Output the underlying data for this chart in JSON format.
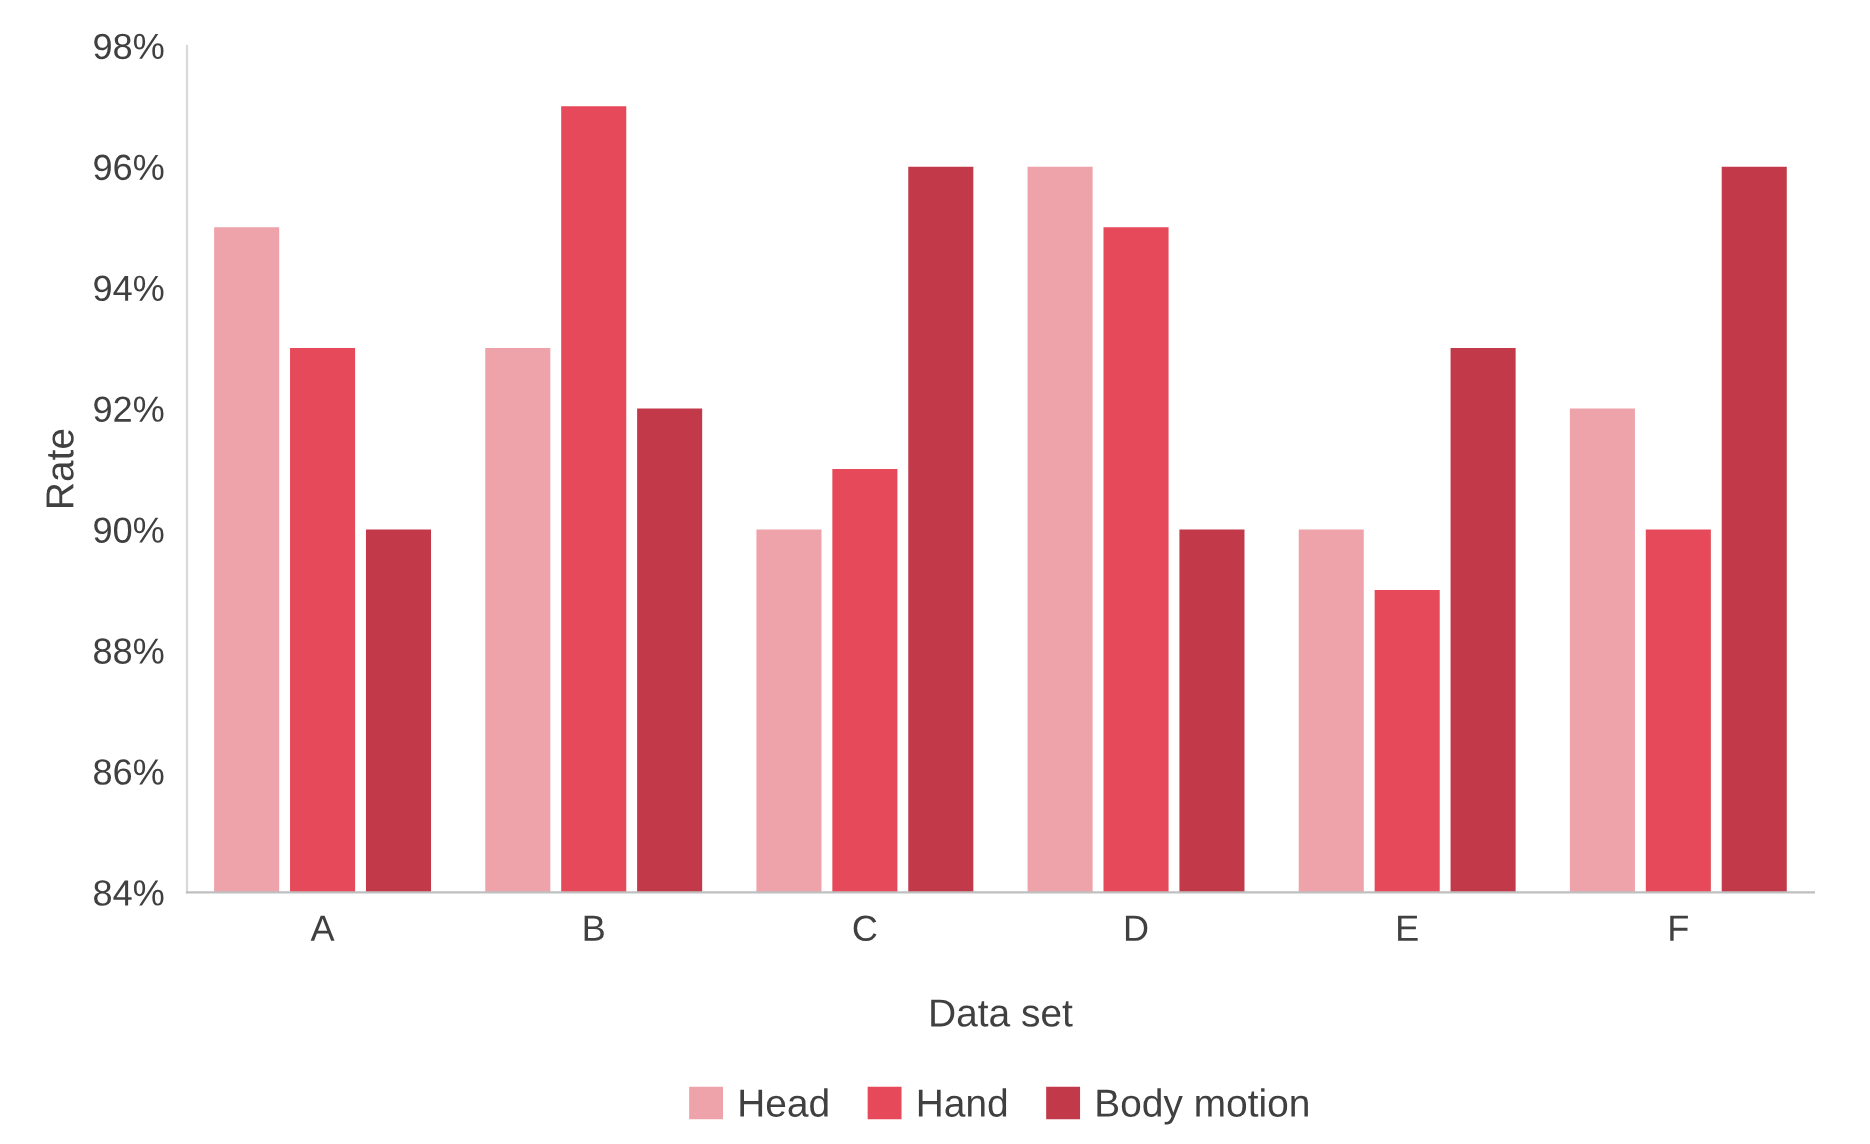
{
  "chart_data": {
    "type": "bar",
    "xlabel": "Data set",
    "ylabel": "Rate",
    "categories": [
      "A",
      "B",
      "C",
      "D",
      "E",
      "F"
    ],
    "series": [
      {
        "name": "Head",
        "color": "#eea3ab",
        "values": [
          95,
          93,
          90,
          96,
          90,
          92
        ]
      },
      {
        "name": "Hand",
        "color": "#e64a5a",
        "values": [
          93,
          97,
          91,
          95,
          89,
          90
        ]
      },
      {
        "name": "Body motion",
        "color": "#c23a4a",
        "values": [
          90,
          92,
          96,
          90,
          93,
          96
        ]
      }
    ],
    "ylim": [
      84,
      98
    ],
    "yticks": [
      {
        "value": 84,
        "label": "84%"
      },
      {
        "value": 86,
        "label": "86%"
      },
      {
        "value": 88,
        "label": "88%"
      },
      {
        "value": 90,
        "label": "90%"
      },
      {
        "value": 92,
        "label": "92%"
      },
      {
        "value": 94,
        "label": "94%"
      },
      {
        "value": 96,
        "label": "96%"
      },
      {
        "value": 98,
        "label": "98%"
      }
    ],
    "grid": false,
    "legend": "bottom"
  }
}
